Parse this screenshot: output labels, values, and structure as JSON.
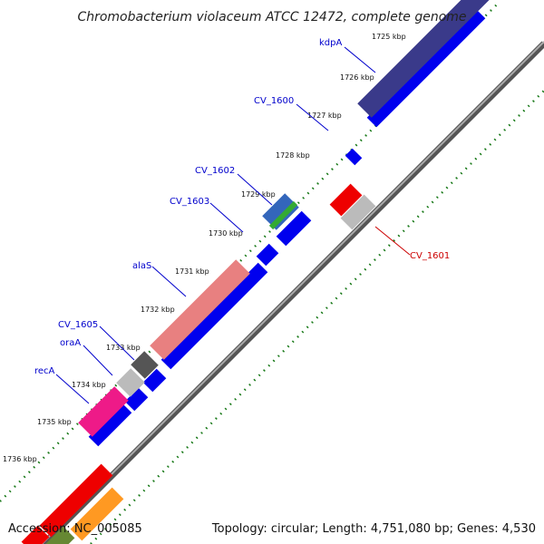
{
  "title": "Chromobacterium violaceum ATCC 12472, complete genome",
  "footer": {
    "accession": "Accession: NC_005085",
    "summary": "Topology: circular; Length: 4,751,080 bp; Genes: 4,530"
  },
  "ticks": [
    "1725 kbp",
    "1726 kbp",
    "1727 kbp",
    "1728 kbp",
    "1729 kbp",
    "1730 kbp",
    "1731 kbp",
    "1732 kbp",
    "1733 kbp",
    "1734 kbp",
    "1735 kbp",
    "1736 kbp"
  ],
  "gene_labels": [
    {
      "name": "kdpA",
      "color": "#0000cc"
    },
    {
      "name": "CV_1600",
      "color": "#0000cc"
    },
    {
      "name": "CV_1602",
      "color": "#0000cc"
    },
    {
      "name": "CV_1603",
      "color": "#0000cc"
    },
    {
      "name": "alaS",
      "color": "#0000cc"
    },
    {
      "name": "CV_1605",
      "color": "#0000cc"
    },
    {
      "name": "oraA",
      "color": "#0000cc"
    },
    {
      "name": "recA",
      "color": "#0000cc"
    },
    {
      "name": "CV_1601",
      "color": "#cc0000"
    }
  ],
  "colors": {
    "backbone": "#888888",
    "forward_cds": "#0000ee",
    "kdp_feature": "#3a3a8a",
    "alaS_feature": "#e88080",
    "recA_feature": "#ee1a88",
    "oraA_feature": "#555555",
    "reverse_red": "#ee0000",
    "reverse_gray": "#bbbbbb",
    "orange_feature": "#ff9922",
    "olive_feature": "#668833",
    "tick_green": "#1a7a1a"
  }
}
